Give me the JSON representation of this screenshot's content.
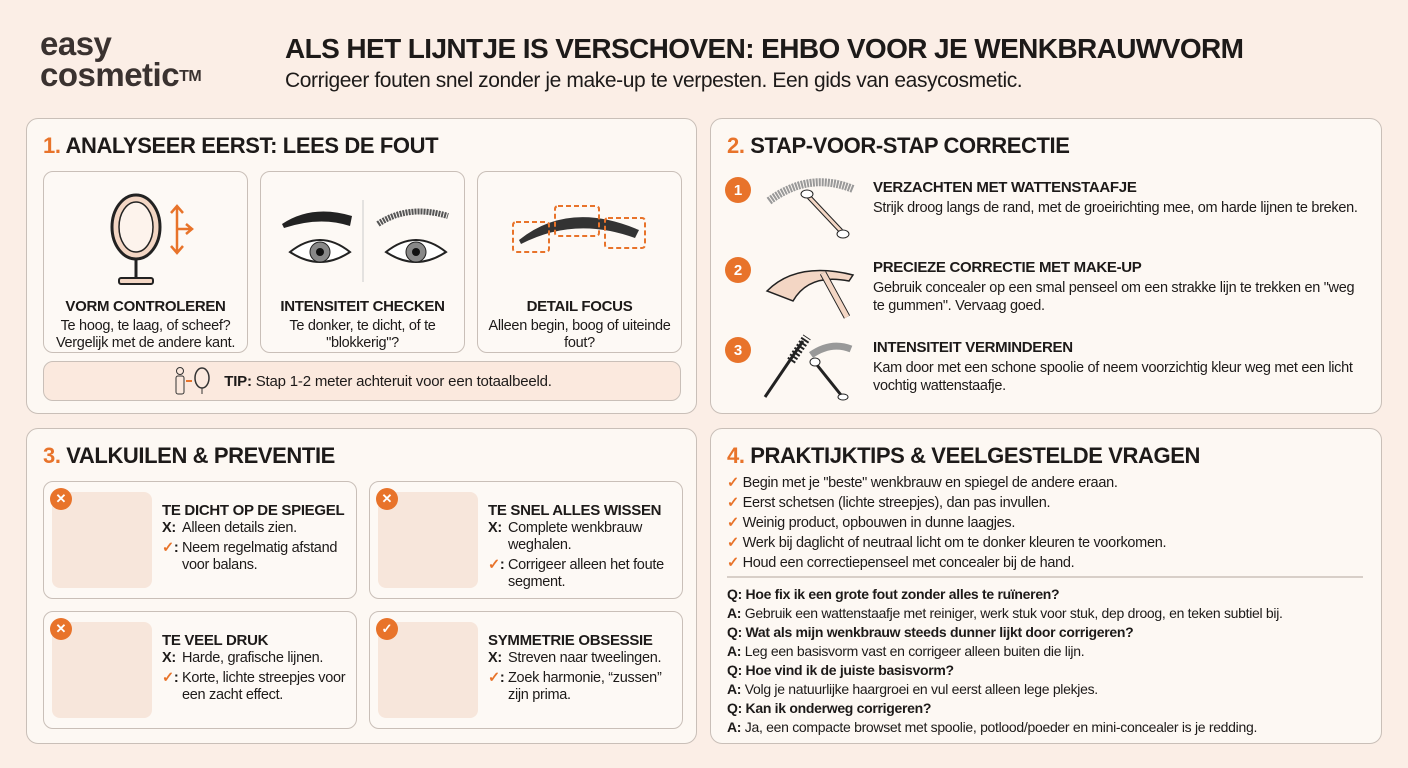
{
  "logo": {
    "line1": "easy",
    "line2": "cosmetic",
    "tm": "TM"
  },
  "header": {
    "title": "ALS HET LIJNTJE IS VERSCHOVEN: EHBO VOOR JE WENKBRAUWVORM",
    "subtitle": "Corrigeer fouten snel zonder je make-up te verpesten. Een gids van easycosmetic."
  },
  "colors": {
    "accent": "#e8732a",
    "background": "#fbeee6",
    "panel": "#fdf8f3"
  },
  "section1": {
    "num": "1.",
    "title": "ANALYSEER EERST: LEES DE FOUT",
    "cards": [
      {
        "icon": "mirror-icon",
        "title": "VORM CONTROLEREN",
        "desc": "Te hoog, te laag, of scheef? Vergelijk met de andere kant."
      },
      {
        "icon": "eyes-comparison-icon",
        "title": "INTENSITEIT CHECKEN",
        "desc": "Te donker, te dicht, of te \"blokkerig\"?"
      },
      {
        "icon": "brow-detail-icon",
        "title": "DETAIL FOCUS",
        "desc": "Alleen begin, boog of uiteinde fout?"
      }
    ],
    "tip": {
      "label": "TIP:",
      "text": " Stap 1-2 meter achteruit voor een totaalbeeld."
    }
  },
  "section2": {
    "num": "2.",
    "title": "STAP-VOOR-STAP CORRECTIE",
    "steps": [
      {
        "n": "1",
        "icon": "cotton-swab-icon",
        "title": "VERZACHTEN MET WATTENSTAAFJE",
        "desc": "Strijk droog langs de rand, met de groeirichting mee, om harde lijnen te breken."
      },
      {
        "n": "2",
        "icon": "concealer-brush-icon",
        "title": "PRECIEZE CORRECTIE MET MAKE-UP",
        "desc": "Gebruik concealer op een smal penseel om een strakke lijn te trekken en \"weg te gummen\". Vervaag goed."
      },
      {
        "n": "3",
        "icon": "spoolie-icon",
        "title": "INTENSITEIT VERMINDEREN",
        "desc": "Kam door met een schone spoolie of neem voorzichtig kleur weg met een licht vochtig wattenstaafje."
      }
    ]
  },
  "section3": {
    "num": "3.",
    "title": "VALKUILEN & PREVENTIE",
    "x": "X:",
    "ok": ":",
    "items": [
      {
        "badge": "✕",
        "title": "TE DICHT OP DE SPIEGEL",
        "bad": "Alleen details zien.",
        "good": "Neem regelmatig afstand voor balans."
      },
      {
        "badge": "✕",
        "title": "TE SNEL ALLES WISSEN",
        "bad": "Complete wenkbrauw weghalen.",
        "good": "Corrigeer alleen het foute segment."
      },
      {
        "badge": "✕",
        "title": "TE VEEL DRUK",
        "bad": "Harde, grafische lijnen.",
        "good": "Korte, lichte streepjes voor een zacht effect."
      },
      {
        "badge": "✓",
        "title": "SYMMETRIE OBSESSIE",
        "bad": "Streven naar tweelingen.",
        "good": "Zoek harmonie, “zussen” zijn prima."
      }
    ]
  },
  "section4": {
    "num": "4.",
    "title": "PRAKTIJKTIPS & VEELGESTELDE VRAGEN",
    "tips": [
      "Begin met je \"beste\" wenkbrauw en spiegel de andere eraan.",
      "Eerst schetsen (lichte streepjes), dan pas invullen.",
      "Weinig product, opbouwen in dunne laagjes.",
      "Werk bij daglicht of neutraal licht om te donker kleuren te voorkomen.",
      "Houd een correctiepenseel met concealer bij de hand."
    ],
    "faq": [
      {
        "q": "Q: Hoe fix ik een grote fout zonder alles te ruïneren?",
        "a": "Gebruik een wattenstaafje met reiniger, werk stuk voor stuk, dep droog, en teken subtiel bij."
      },
      {
        "q": "Q: Wat als mijn wenkbrauw steeds dunner lijkt door corrigeren?",
        "a": "Leg een basisvorm vast en corrigeer alleen buiten die lijn."
      },
      {
        "q": "Q: Hoe vind ik de juiste basisvorm?",
        "a": "Volg je natuurlijke haargroei en vul eerst alleen lege plekjes."
      },
      {
        "q": "Q: Kan ik onderweg corrigeren?",
        "a": "Ja, een compacte browset met spoolie, potlood/poeder en mini-concealer is je redding."
      }
    ],
    "a_label": "A:"
  }
}
